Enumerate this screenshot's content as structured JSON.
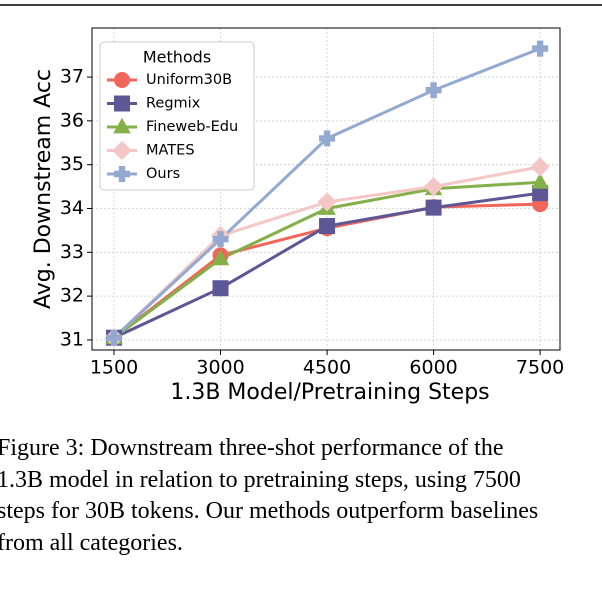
{
  "chart_data": {
    "type": "line",
    "x_label": "1.3B Model/Pretraining Steps",
    "y_label": "Avg. Downstream Acc",
    "x": [
      1500,
      3000,
      4500,
      6000,
      7500
    ],
    "series": [
      {
        "name": "Uniform30B",
        "color": "#f0665a",
        "marker": "circle",
        "values": [
          31.05,
          32.93,
          33.55,
          34.03,
          34.1
        ]
      },
      {
        "name": "Regmix",
        "color": "#5d5796",
        "marker": "square",
        "values": [
          31.05,
          32.18,
          33.6,
          34.02,
          34.35
        ]
      },
      {
        "name": "Fineweb-Edu",
        "color": "#84b04a",
        "marker": "triangle",
        "values": [
          31.05,
          32.85,
          34.0,
          34.45,
          34.6
        ]
      },
      {
        "name": "MATES",
        "color": "#f5c6c6",
        "marker": "diamond",
        "values": [
          31.05,
          33.38,
          34.15,
          34.5,
          34.95
        ]
      },
      {
        "name": "Ours",
        "color": "#94a9d0",
        "marker": "plus",
        "values": [
          31.05,
          33.3,
          35.6,
          36.7,
          37.65
        ]
      }
    ],
    "xlim": [
      1190,
      7780
    ],
    "ylim": [
      30.77,
      38.12
    ],
    "xticks": [
      1500,
      3000,
      4500,
      6000,
      7500
    ],
    "yticks": [
      31,
      32,
      33,
      34,
      35,
      36,
      37
    ],
    "grid": true,
    "legend_title": "Methods",
    "legend_position": "upper-left"
  },
  "caption": [
    "Figure 3: Downstream three-shot performance of the",
    "1.3B model in relation to pretraining steps, using 7500",
    "steps for 30B tokens. Our methods outperform baselines",
    "from all categories."
  ]
}
